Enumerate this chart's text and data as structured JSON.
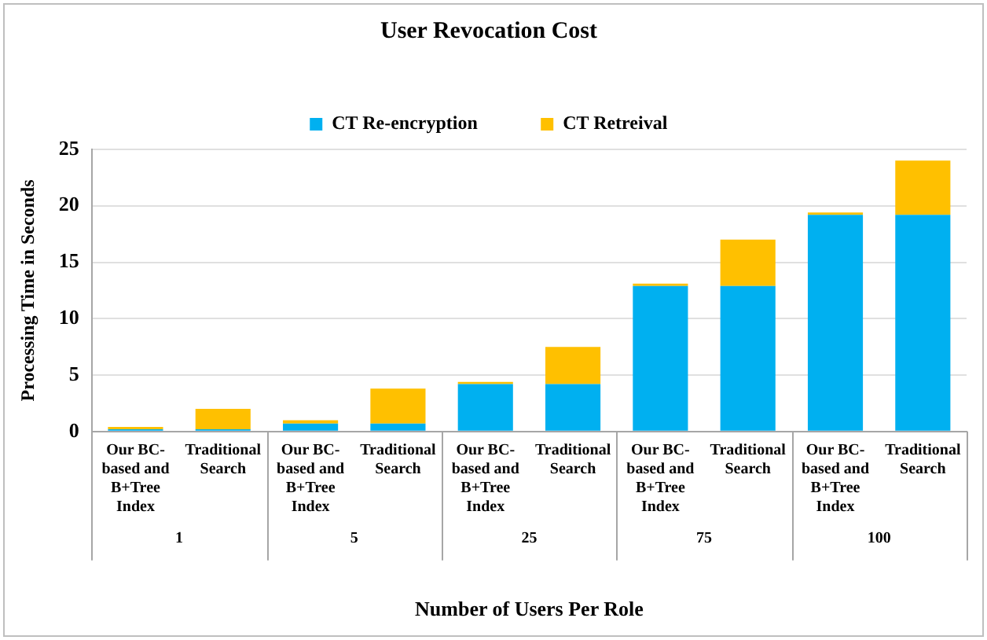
{
  "chart_data": {
    "type": "bar",
    "title": "User Revocation Cost",
    "xlabel": "Number of Users Per Role",
    "ylabel": "Processing Time in Seconds",
    "categories": [
      "Our BC-based and B+Tree Index",
      "Traditional Search",
      "Our BC-based and B+Tree Index",
      "Traditional Search",
      "Our BC-based and B+Tree Index",
      "Traditional Search",
      "Our BC-based and B+Tree Index",
      "Traditional Search",
      "Our BC-based and B+Tree Index",
      "Traditional Search"
    ],
    "series": [
      {
        "name": "CT Re-encryption",
        "color": "#00b0f0",
        "values": [
          0.2,
          0.2,
          0.7,
          0.7,
          4.2,
          4.2,
          12.9,
          12.9,
          19.2,
          19.2
        ]
      },
      {
        "name": "CT Retreival",
        "color": "#ffc000",
        "values": [
          0.2,
          1.8,
          0.3,
          3.1,
          0.2,
          3.3,
          0.2,
          4.1,
          0.2,
          4.8
        ]
      }
    ],
    "stacked": true,
    "ylim": [
      0,
      25
    ],
    "yticks": [
      0,
      5,
      10,
      15,
      20,
      25
    ],
    "grid": "y",
    "legend": "top",
    "annotations": [
      "1",
      "5",
      "25",
      "75",
      "100"
    ]
  }
}
